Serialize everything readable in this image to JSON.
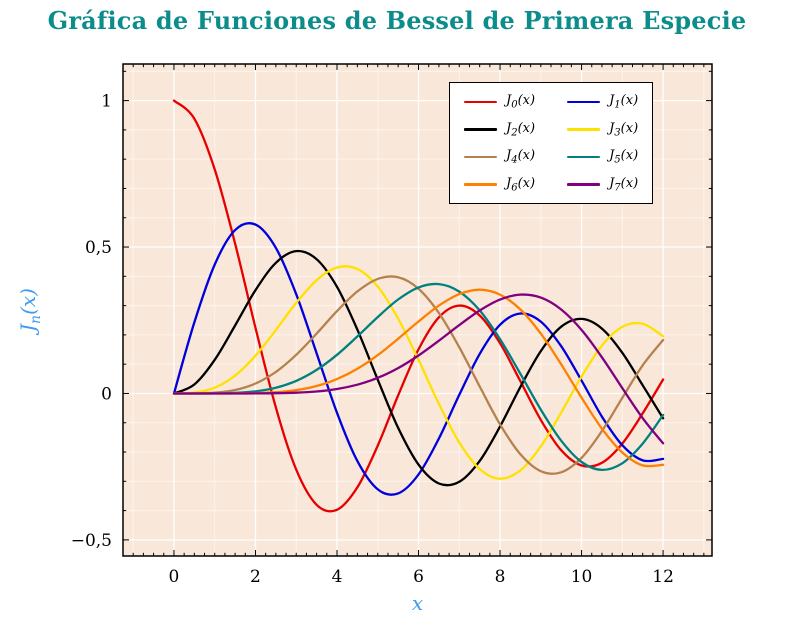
{
  "chart_data": {
    "type": "line",
    "title": "Gráfica de Funciones de Bessel de Primera Especie",
    "title_color": "#0d8c8c",
    "xlabel": "x",
    "ylabel_parts": {
      "base": "J",
      "sub": "n",
      "rest": "(x)"
    },
    "axis_label_color": "#3e9cf2",
    "plot_bg": "#f9e8da",
    "grid_major_color": "rgba(255,255,255,0.95)",
    "grid_minor_color": "rgba(255,255,255,0.5)",
    "frame_color": "#000000",
    "xlim": [
      -1.25,
      13.2
    ],
    "ylim": [
      -0.555,
      1.125
    ],
    "xticks": {
      "values": [
        0,
        2,
        4,
        6,
        8,
        10,
        12
      ],
      "labels": [
        "0",
        "2",
        "4",
        "6",
        "8",
        "10",
        "12"
      ]
    },
    "yticks": {
      "values": [
        -0.5,
        0,
        0.5,
        1
      ],
      "labels": [
        "−0,5",
        "0",
        "0,5",
        "1"
      ]
    },
    "legend": {
      "position": "top-right",
      "columns": 2
    },
    "x": [
      0,
      0.5,
      1,
      1.5,
      2,
      2.5,
      3,
      3.5,
      4,
      4.5,
      5,
      5.5,
      6,
      6.5,
      7,
      7.5,
      8,
      8.5,
      9,
      9.5,
      10,
      10.5,
      11,
      11.5,
      12
    ],
    "series": [
      {
        "label_base": "J",
        "label_sub": "0",
        "label_rest": "(x)",
        "color": "#e60000",
        "values": [
          1,
          0.9385,
          0.7652,
          0.5118,
          0.2239,
          -0.0484,
          -0.2601,
          -0.3801,
          -0.3971,
          -0.3205,
          -0.1776,
          -0.0068,
          0.1506,
          0.2601,
          0.3001,
          0.2663,
          0.1717,
          0.0419,
          -0.0903,
          -0.1939,
          -0.2459,
          -0.2366,
          -0.1712,
          -0.0677,
          0.0477
        ]
      },
      {
        "label_base": "J",
        "label_sub": "1",
        "label_rest": "(x)",
        "color": "#0000dd",
        "values": [
          0,
          0.2423,
          0.4401,
          0.5579,
          0.5767,
          0.4971,
          0.3391,
          0.1374,
          -0.066,
          -0.2311,
          -0.3276,
          -0.3414,
          -0.2767,
          -0.1538,
          -0.0047,
          0.1352,
          0.2346,
          0.2731,
          0.2453,
          0.1613,
          0.0435,
          -0.0789,
          -0.1768,
          -0.2284,
          -0.2234
        ]
      },
      {
        "label_base": "J",
        "label_sub": "2",
        "label_rest": "(x)",
        "color": "#000000",
        "values": [
          0,
          0.0306,
          0.1149,
          0.2321,
          0.3528,
          0.4461,
          0.4861,
          0.4586,
          0.3641,
          0.2178,
          0.0466,
          -0.1173,
          -0.2429,
          -0.3074,
          -0.3014,
          -0.2303,
          -0.113,
          0.0223,
          0.1448,
          0.2279,
          0.2546,
          0.2216,
          0.139,
          0.0279,
          -0.0849
        ]
      },
      {
        "label_base": "J",
        "label_sub": "3",
        "label_rest": "(x)",
        "color": "#ffe100",
        "values": [
          0,
          0.0026,
          0.0196,
          0.061,
          0.1289,
          0.2166,
          0.3091,
          0.3868,
          0.4302,
          0.4247,
          0.3648,
          0.2561,
          0.1148,
          -0.0353,
          -0.1676,
          -0.2581,
          -0.2911,
          -0.2626,
          -0.1809,
          -0.0653,
          0.0584,
          0.1633,
          0.2273,
          0.2381,
          0.1951
        ]
      },
      {
        "label_base": "J",
        "label_sub": "4",
        "label_rest": "(x)",
        "color": "#b5824f",
        "values": [
          0,
          0.0002,
          0.0025,
          0.0118,
          0.034,
          0.0738,
          0.132,
          0.2044,
          0.2811,
          0.3484,
          0.3912,
          0.3967,
          0.3576,
          0.2748,
          0.1578,
          0.0238,
          -0.1054,
          -0.2077,
          -0.2655,
          -0.2691,
          -0.2196,
          -0.1283,
          -0.015,
          0.0963,
          0.1825
        ]
      },
      {
        "label_base": "J",
        "label_sub": "5",
        "label_rest": "(x)",
        "color": "#008080",
        "values": [
          0,
          0,
          0.0002,
          0.0018,
          0.007,
          0.0195,
          0.043,
          0.0804,
          0.1321,
          0.1947,
          0.2611,
          0.3209,
          0.3621,
          0.3736,
          0.3479,
          0.2835,
          0.1858,
          0.0671,
          -0.055,
          -0.1613,
          -0.2341,
          -0.2611,
          -0.2383,
          -0.1711,
          -0.0735
        ]
      },
      {
        "label_base": "J",
        "label_sub": "6",
        "label_rest": "(x)",
        "color": "#ff8000",
        "values": [
          0,
          0,
          0,
          0.0002,
          0.0012,
          0.0042,
          0.0114,
          0.0254,
          0.0491,
          0.0843,
          0.131,
          0.1868,
          0.2458,
          0.2999,
          0.3392,
          0.3542,
          0.3376,
          0.2867,
          0.2043,
          0.0993,
          -0.0145,
          -0.1203,
          -0.2016,
          -0.2458,
          -0.2437
        ]
      },
      {
        "label_base": "J",
        "label_sub": "7",
        "label_rest": "(x)",
        "color": "#800080",
        "values": [
          0,
          0,
          0,
          0,
          0.0002,
          0.0008,
          0.0025,
          0.0067,
          0.0152,
          0.03,
          0.0534,
          0.0866,
          0.1296,
          0.1801,
          0.2336,
          0.2832,
          0.3206,
          0.3376,
          0.3275,
          0.2868,
          0.2167,
          0.1236,
          0.0184,
          -0.0846,
          -0.1703
        ]
      }
    ]
  }
}
